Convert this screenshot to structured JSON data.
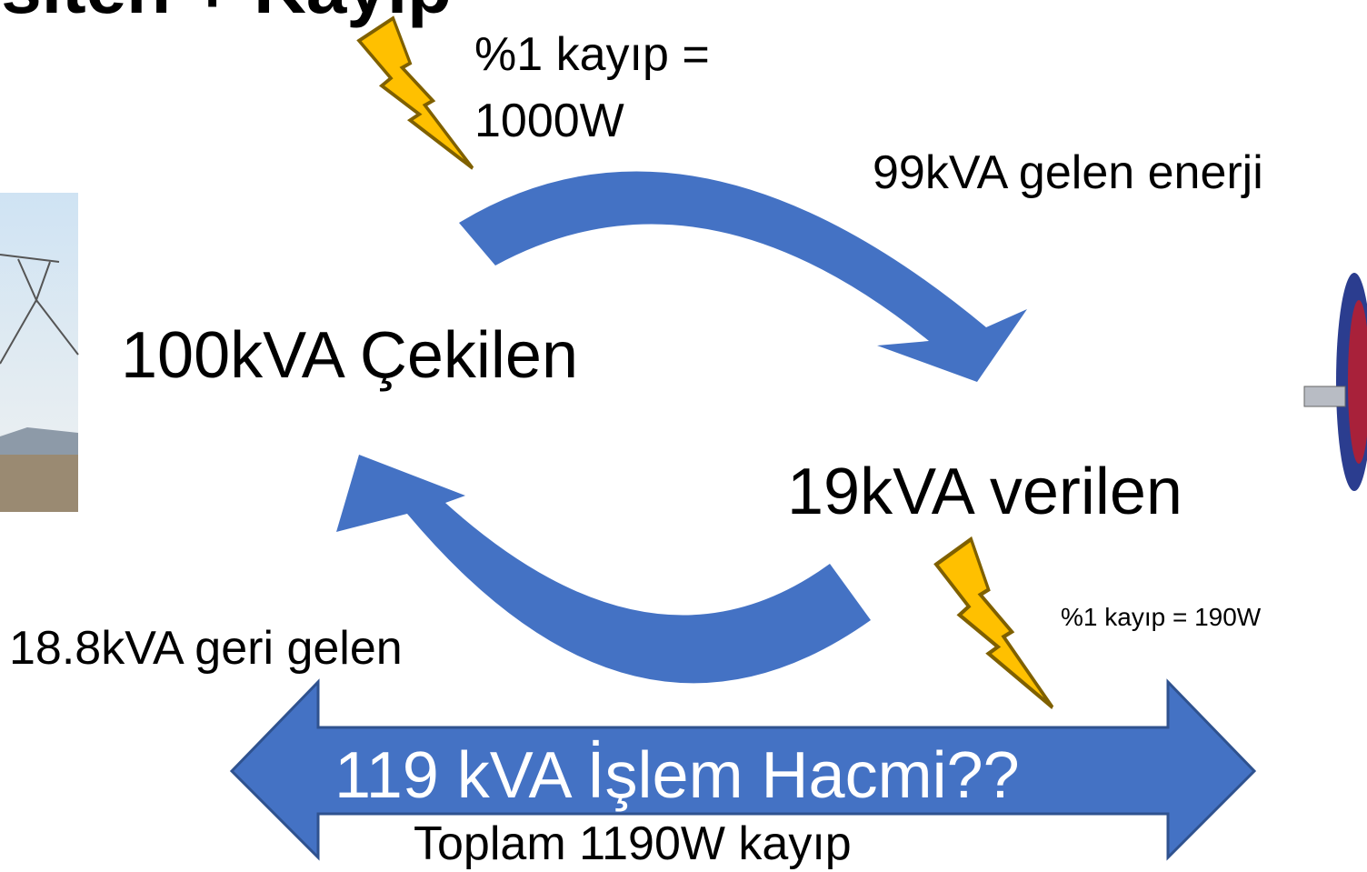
{
  "header": {
    "title": "sıten + Kayıp"
  },
  "labels": {
    "top_loss": [
      "%1 kayıp =",
      "1000W"
    ],
    "incoming": "99kVA gelen enerji",
    "drawn": "100kVA Çekilen",
    "given": "19kVA verilen",
    "bottom_loss": "%1 kayıp = 190W",
    "returned": "18.8kVA geri gelen",
    "volume": "119 kVA İşlem Hacmi??",
    "total_loss": "Toplam 1190W kayıp"
  }
}
